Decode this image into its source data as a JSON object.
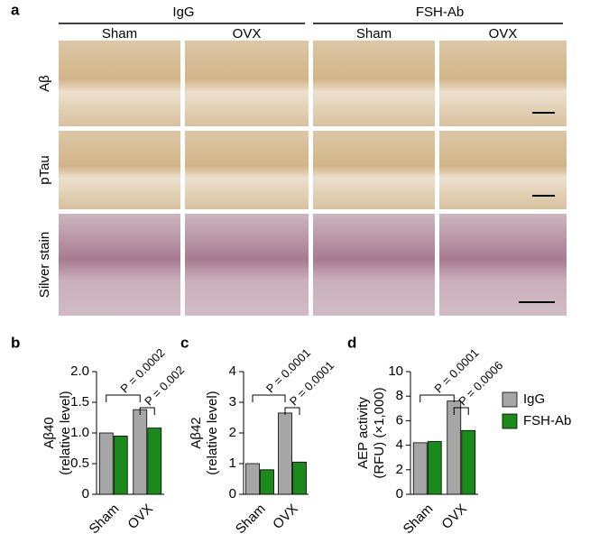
{
  "panel_a": {
    "label": "a",
    "groups": [
      {
        "name": "IgG",
        "conditions": [
          "Sham",
          "OVX"
        ]
      },
      {
        "name": "FSH-Ab",
        "conditions": [
          "Sham",
          "OVX"
        ]
      }
    ],
    "rows": [
      "Aβ",
      "pTau",
      "Silver stain"
    ]
  },
  "chart_data": [
    {
      "type": "bar",
      "panel_label": "b",
      "ylabel": [
        "Aβ40",
        "(relative level)"
      ],
      "categories": [
        "Sham",
        "OVX"
      ],
      "series": [
        {
          "name": "IgG",
          "color": "#a6a6a6",
          "values": [
            1.0,
            1.38
          ]
        },
        {
          "name": "FSH-Ab",
          "color": "#1a8a1a",
          "values": [
            0.95,
            1.08
          ]
        }
      ],
      "ylim": [
        0,
        2
      ],
      "yticks": [
        0,
        0.5,
        {
          "value": 1,
          "label": "1.0"
        },
        1.5,
        {
          "value": 2,
          "label": "2.0"
        }
      ],
      "annotations": [
        "P = 0.0002",
        "P = 0.002"
      ]
    },
    {
      "type": "bar",
      "panel_label": "c",
      "ylabel": [
        "Aβ42",
        "(relative level)"
      ],
      "categories": [
        "Sham",
        "OVX"
      ],
      "series": [
        {
          "name": "IgG",
          "color": "#a6a6a6",
          "values": [
            1.0,
            2.65
          ]
        },
        {
          "name": "FSH-Ab",
          "color": "#1a8a1a",
          "values": [
            0.8,
            1.05
          ]
        }
      ],
      "ylim": [
        0,
        4
      ],
      "yticks": [
        0,
        1,
        2,
        3,
        4
      ],
      "annotations": [
        "P = 0.0001",
        "P = 0.0001"
      ]
    },
    {
      "type": "bar",
      "panel_label": "d",
      "ylabel": [
        "AEP activity",
        "(RFU) (×1,000)"
      ],
      "categories": [
        "Sham",
        "OVX"
      ],
      "series": [
        {
          "name": "IgG",
          "color": "#a6a6a6",
          "values": [
            4.2,
            7.6
          ]
        },
        {
          "name": "FSH-Ab",
          "color": "#1a8a1a",
          "values": [
            4.3,
            5.2
          ]
        }
      ],
      "ylim": [
        0,
        10
      ],
      "yticks": [
        0,
        2,
        4,
        6,
        8,
        10
      ],
      "annotations": [
        "P = 0.0001",
        "P = 0.0006"
      ],
      "legend": "right"
    }
  ]
}
